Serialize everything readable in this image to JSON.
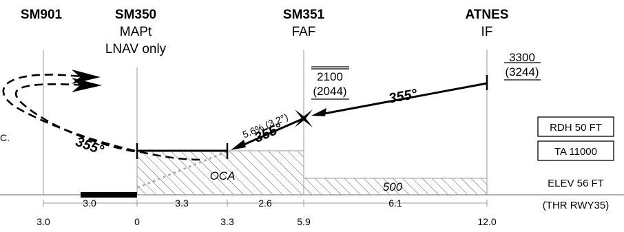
{
  "fixes": {
    "sm901": {
      "name": "SM901"
    },
    "sm350": {
      "name": "SM350",
      "role": "MAPt",
      "note": "LNAV only"
    },
    "sm351": {
      "name": "SM351",
      "role": "FAF"
    },
    "atnes": {
      "name": "ATNES",
      "role": "IF"
    }
  },
  "altitudes": {
    "atnes": {
      "top": "3300",
      "bottom": "(3244)"
    },
    "sm351": {
      "top": "2100",
      "bottom": "(2044)"
    }
  },
  "courses": {
    "initial": "355°",
    "final": "355°",
    "missed": "355°"
  },
  "gradient": "5.6% (3.2°)",
  "cutoff_text": "C.",
  "labels": {
    "oca": "OCA",
    "msa_final": "500"
  },
  "boxes": {
    "rdh": "RDH 50 FT",
    "ta": "TA 11000"
  },
  "elevation": "ELEV 56 FT",
  "threshold": "(THR RWY35)",
  "segment_distances": [
    "3.0",
    "3.3",
    "2.6",
    "6.1"
  ],
  "cumulative_distances": [
    "3.0",
    "0",
    "3.3",
    "5.9",
    "12.0"
  ]
}
